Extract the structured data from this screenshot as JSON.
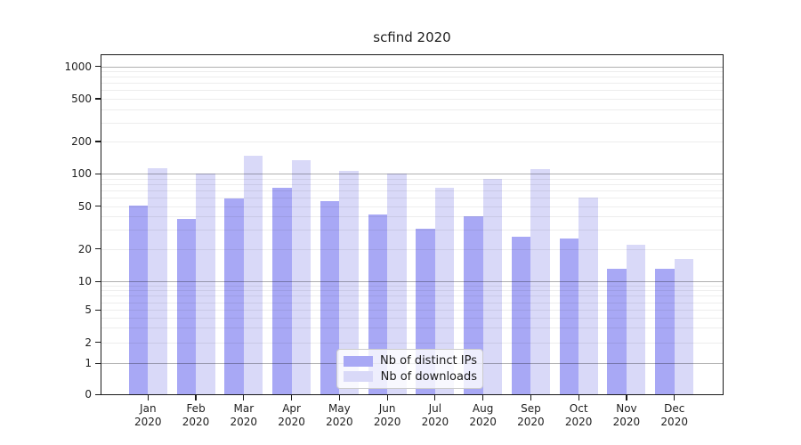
{
  "chart_data": {
    "type": "bar",
    "title": "scfind 2020",
    "categories": [
      "Jan",
      "Feb",
      "Mar",
      "Apr",
      "May",
      "Jun",
      "Jul",
      "Aug",
      "Sep",
      "Oct",
      "Nov",
      "Dec"
    ],
    "x_year_line": "2020",
    "series": [
      {
        "name": "Nb of distinct IPs",
        "color": "#a8a8f5",
        "values": [
          51,
          38,
          59,
          74,
          56,
          42,
          31,
          40,
          26,
          25,
          13,
          13
        ]
      },
      {
        "name": "Nb of downloads",
        "color": "#d9d9f8",
        "values": [
          113,
          100,
          148,
          135,
          106,
          100,
          74,
          89,
          110,
          60,
          22,
          16
        ]
      }
    ],
    "y_ticks": [
      0,
      1,
      2,
      5,
      10,
      20,
      50,
      100,
      200,
      500,
      1000
    ],
    "y_major_gridlines": [
      1,
      10,
      100,
      1000
    ],
    "y_scale": "symlog",
    "ylim": [
      0,
      1300
    ],
    "xlabel": "",
    "ylabel": "",
    "grid": true,
    "legend_position": "lower center"
  }
}
